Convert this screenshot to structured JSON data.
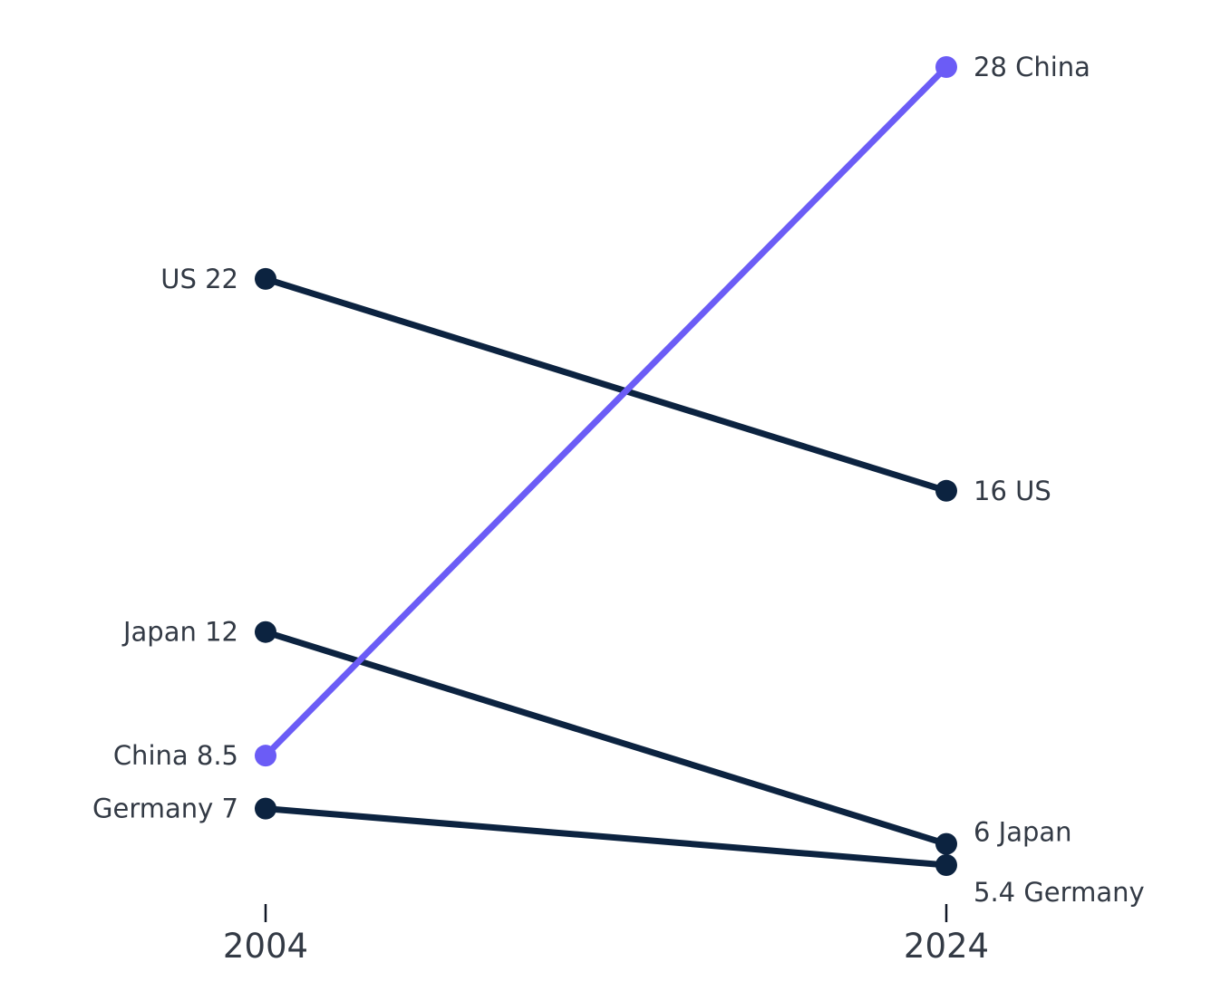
{
  "chart_data": {
    "type": "line",
    "subtype": "slope",
    "title": "",
    "xlabel": "",
    "ylabel": "",
    "x": [
      "2004",
      "2024"
    ],
    "ylim": [
      5,
      29
    ],
    "grid": false,
    "legend": "none",
    "highlight_color": "#6b5cf6",
    "default_color": "#0c2340",
    "series": [
      {
        "name": "US",
        "values": [
          22,
          16
        ],
        "labels": [
          "US 22",
          "16 US"
        ],
        "highlight": false
      },
      {
        "name": "Japan",
        "values": [
          12,
          6
        ],
        "labels": [
          "Japan 12",
          "6 Japan"
        ],
        "highlight": false
      },
      {
        "name": "China",
        "values": [
          8.5,
          28
        ],
        "labels": [
          "China 8.5",
          "28 China"
        ],
        "highlight": true
      },
      {
        "name": "Germany",
        "values": [
          7,
          5.4
        ],
        "labels": [
          "Germany 7",
          "5.4 Germany"
        ],
        "highlight": false
      }
    ]
  }
}
